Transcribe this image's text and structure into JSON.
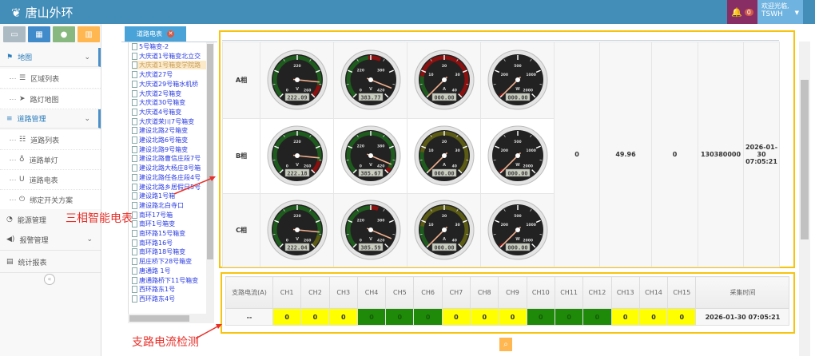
{
  "header": {
    "title": "唐山外环",
    "alert_count": "0",
    "welcome": "欢迎光临,",
    "user": "TSWH",
    "colors": {
      "bar": "#438eb9",
      "alerts": "#892e65",
      "user": "#6fb3e0"
    }
  },
  "shortcuts": [
    {
      "icon": "monitor-icon",
      "color": "#abbac3"
    },
    {
      "icon": "grid-icon",
      "color": "#428bca"
    },
    {
      "icon": "user-icon",
      "color": "#87b87f"
    },
    {
      "icon": "trash-icon",
      "color": "#ffb752"
    }
  ],
  "menu": [
    {
      "label": "地图",
      "icon": "flag-icon",
      "type": "top",
      "expanded": true
    },
    {
      "label": "区域列表",
      "icon": "list-icon",
      "type": "sub"
    },
    {
      "label": "路灯地图",
      "icon": "location-arrow-icon",
      "type": "sub"
    },
    {
      "label": "道路管理",
      "icon": "bars-icon",
      "type": "top",
      "expanded": true
    },
    {
      "label": "道路列表",
      "icon": "list-ol-icon",
      "type": "sub"
    },
    {
      "label": "道路单灯",
      "icon": "lightbulb-icon",
      "type": "sub"
    },
    {
      "label": "道路电表",
      "icon": "meter-icon",
      "type": "sub"
    },
    {
      "label": "绑定开关方案",
      "icon": "power-icon",
      "type": "sub"
    },
    {
      "label": "能源管理",
      "icon": "rss-icon",
      "type": "top"
    },
    {
      "label": "报警管理",
      "icon": "volume-icon",
      "type": "top",
      "chevron": true
    },
    {
      "label": "统计报表",
      "icon": "report-icon",
      "type": "top"
    }
  ],
  "tab": {
    "label": "道路电表"
  },
  "tree": [
    "5号箱变-2",
    "大庆道1号箱变北立交",
    "大庆道1号箱变学院路",
    "大庆道27号",
    "大庆道29号箱水机桥",
    "大庆道2号箱变",
    "大庆道30号箱变",
    "大庆道4号箱变",
    "大庆道荣川7号箱变",
    "建设北路2号箱变",
    "建设北路6号箱变",
    "建设北路9号箱变",
    "建设北路曹信庄段7号",
    "建设北路大杨庄8号箱",
    "建设北路任各庄段4号",
    "建设北路乡居假日5号",
    "建设路1号箱",
    "建设路北白寺口",
    "南环17号箱",
    "南环1号箱变",
    "南环路15号箱变",
    "南环路16号",
    "南环路18号箱变",
    "屈庄桥下28号箱变",
    "唐通路 1号",
    "唐通路桥下11号箱变",
    "西环路东1号",
    "西环路东4号"
  ],
  "tree_selected": 2,
  "annotations": {
    "meter": "三相智能电表",
    "branch": "支路电流检测"
  },
  "phases": [
    {
      "label": "A相",
      "gauges": [
        {
          "unit": "V",
          "max": 260,
          "value": 222.09,
          "display": "222.09",
          "labels": [
            "0",
            "220",
            "260"
          ],
          "bands": [
            [
              0,
              230,
              "#1e5c1e"
            ],
            [
              230,
              260,
              "#8b1010"
            ]
          ]
        },
        {
          "unit": "V",
          "max": 420,
          "value": 383.77,
          "display": "383.77",
          "labels": [
            "0",
            "220",
            "380",
            "420"
          ],
          "bands": [
            [
              0,
              200,
              "#1e5c1e"
            ],
            [
              200,
              250,
              "#8b1010"
            ]
          ]
        },
        {
          "unit": "A",
          "max": 40,
          "value": 0,
          "display": "000.00",
          "labels": [
            "10",
            "20",
            "30",
            "40"
          ],
          "bands": [
            [
              0,
              8,
              "#1e5c1e"
            ],
            [
              8,
              40,
              "#8b1010"
            ]
          ]
        },
        {
          "unit": "W",
          "max": 2000,
          "value": 0,
          "display": "000.00",
          "labels": [
            "200",
            "500",
            "1000",
            "2000"
          ],
          "bands": [
            [
              0,
              40,
              "#8b1010"
            ]
          ]
        }
      ]
    },
    {
      "label": "B相",
      "gauges": [
        {
          "unit": "V",
          "max": 260,
          "value": 222.18,
          "display": "222.18",
          "labels": [
            "0",
            "220",
            "260"
          ],
          "bands": [
            [
              0,
              230,
              "#1e5c1e"
            ],
            [
              230,
              260,
              "#8b1010"
            ]
          ]
        },
        {
          "unit": "V",
          "max": 420,
          "value": 385.67,
          "display": "385.67",
          "labels": [
            "0",
            "220",
            "380",
            "420"
          ],
          "bands": [
            [
              0,
              400,
              "#1e5c1e"
            ],
            [
              400,
              420,
              "#8b1010"
            ]
          ]
        },
        {
          "unit": "A",
          "max": 40,
          "value": 0,
          "display": "000.00",
          "labels": [
            "10",
            "20",
            "30",
            "40"
          ],
          "bands": [
            [
              0,
              8,
              "#1e5c1e"
            ],
            [
              8,
              40,
              "#5c5c14"
            ]
          ]
        },
        {
          "unit": "W",
          "max": 2000,
          "value": 0,
          "display": "000.00",
          "labels": [
            "200",
            "500",
            "1000",
            "2000"
          ],
          "bands": [
            [
              0,
              40,
              "#8b1010"
            ]
          ]
        }
      ]
    },
    {
      "label": "C相",
      "gauges": [
        {
          "unit": "V",
          "max": 260,
          "value": 222.04,
          "display": "222.04",
          "labels": [
            "0",
            "220",
            "260"
          ],
          "bands": [
            [
              0,
              230,
              "#1e5c1e"
            ],
            [
              230,
              260,
              "#5c5c14"
            ]
          ]
        },
        {
          "unit": "V",
          "max": 420,
          "value": 385.59,
          "display": "385.59",
          "labels": [
            "0",
            "220",
            "380",
            "420"
          ],
          "bands": [
            [
              0,
              210,
              "#1e5c1e"
            ],
            [
              210,
              240,
              "#8b1010"
            ]
          ]
        },
        {
          "unit": "A",
          "max": 40,
          "value": 0,
          "display": "000.00",
          "labels": [
            "10",
            "20",
            "30",
            "40"
          ],
          "bands": [
            [
              0,
              8,
              "#1e5c1e"
            ],
            [
              8,
              40,
              "#5c5c14"
            ]
          ]
        },
        {
          "unit": "W",
          "max": 2000,
          "value": 0,
          "display": "000.00",
          "labels": [
            "200",
            "500",
            "1000",
            "2000"
          ],
          "bands": [
            [
              0,
              40,
              "#8b1010"
            ]
          ]
        }
      ]
    }
  ],
  "summary": [
    "0",
    "49.96",
    "0",
    "130380000",
    "2026-01-30 07:05:21"
  ],
  "branch": {
    "header_first": "支路电流(A)",
    "channels": [
      "CH1",
      "CH2",
      "CH3",
      "CH4",
      "CH5",
      "CH6",
      "CH7",
      "CH8",
      "CH9",
      "CH10",
      "CH11",
      "CH12",
      "CH13",
      "CH14",
      "CH15"
    ],
    "header_last": "采集时间",
    "row_first": "--",
    "values": [
      "0",
      "0",
      "0",
      "0",
      "0",
      "0",
      "0",
      "0",
      "0",
      "0",
      "0",
      "0",
      "0",
      "0",
      "0"
    ],
    "status": [
      "yellow",
      "yellow",
      "yellow",
      "green",
      "green",
      "green",
      "yellow",
      "yellow",
      "yellow",
      "green",
      "green",
      "green",
      "yellow",
      "yellow",
      "yellow"
    ],
    "time": "2026-01-30 07:05:21",
    "colors": {
      "yellow": "#ffff00",
      "green": "#1f8a0a"
    }
  },
  "search": {
    "icon": "search-icon"
  }
}
